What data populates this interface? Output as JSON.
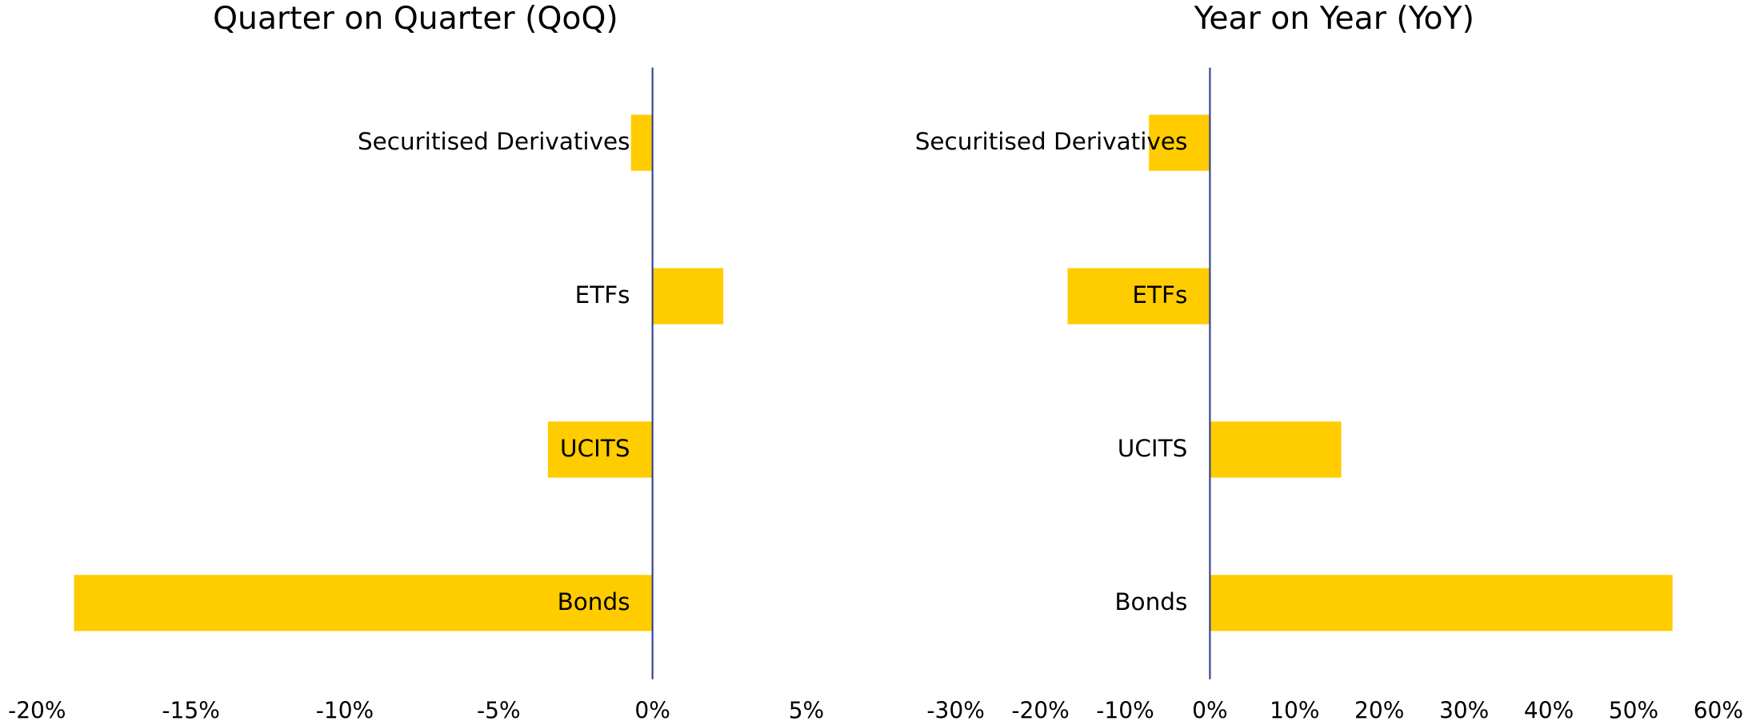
{
  "chart_data": [
    {
      "type": "barh",
      "title": "Quarter on Quarter (QoQ)",
      "categories": [
        "Securitised Derivatives",
        "ETFs",
        "UCITS",
        "Bonds"
      ],
      "values": [
        -0.7,
        2.3,
        -3.4,
        -18.8
      ],
      "color": "#ffcc00",
      "xlim": [
        -20,
        5
      ],
      "xticks": [
        {
          "value": -20,
          "label": "-20%"
        },
        {
          "value": -15,
          "label": "-15%"
        },
        {
          "value": -10,
          "label": "-10%"
        },
        {
          "value": -5,
          "label": "-5%"
        },
        {
          "value": 0,
          "label": "0%"
        },
        {
          "value": 5,
          "label": "5%"
        }
      ]
    },
    {
      "type": "barh",
      "title": "Year on Year (YoY)",
      "categories": [
        "Securitised Derivatives",
        "ETFs",
        "UCITS",
        "Bonds"
      ],
      "values": [
        -7.2,
        -16.8,
        15.5,
        54.6
      ],
      "color": "#ffcc00",
      "xlim": [
        -30,
        60
      ],
      "xticks": [
        {
          "value": -30,
          "label": "-30%"
        },
        {
          "value": -20,
          "label": "-20%"
        },
        {
          "value": -10,
          "label": "-10%"
        },
        {
          "value": 0,
          "label": "0%"
        },
        {
          "value": 10,
          "label": "10%"
        },
        {
          "value": 20,
          "label": "20%"
        },
        {
          "value": 30,
          "label": "30%"
        },
        {
          "value": 40,
          "label": "40%"
        },
        {
          "value": 50,
          "label": "50%"
        },
        {
          "value": 60,
          "label": "60%"
        }
      ]
    }
  ]
}
